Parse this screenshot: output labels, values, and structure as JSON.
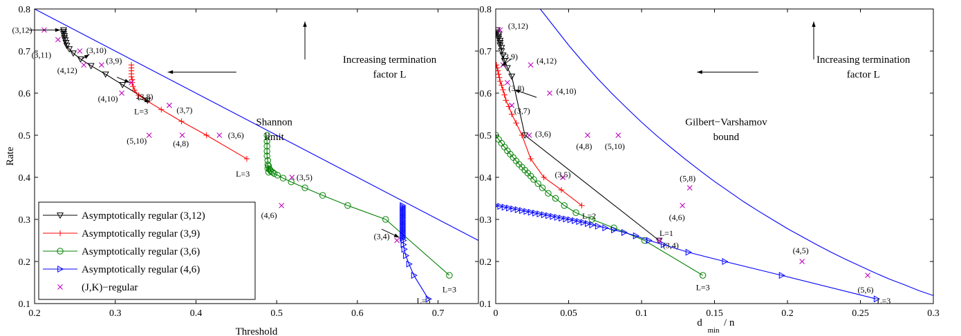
{
  "chart_data": [
    {
      "type": "line",
      "xlabel": "Threshold",
      "ylabel": "Rate",
      "xlim": [
        0.2,
        0.75
      ],
      "ylim": [
        0.1,
        0.8
      ],
      "xticks": [
        0.2,
        0.3,
        0.4,
        0.5,
        0.6,
        0.7
      ],
      "yticks": [
        0.1,
        0.2,
        0.3,
        0.4,
        0.5,
        0.6,
        0.7,
        0.8
      ],
      "grid": false,
      "legend_position": "bottom-left",
      "series": [
        {
          "name": "Asymptotically regular (3,12)",
          "color": "#000000",
          "marker": "triangle-down",
          "x": [
            0.236,
            0.236,
            0.236,
            0.237,
            0.237,
            0.238,
            0.239,
            0.24,
            0.243,
            0.248,
            0.257,
            0.27,
            0.288,
            0.309,
            0.34
          ],
          "y": [
            0.75,
            0.746,
            0.741,
            0.736,
            0.731,
            0.726,
            0.72,
            0.713,
            0.705,
            0.695,
            0.681,
            0.665,
            0.645,
            0.62,
            0.583
          ]
        },
        {
          "name": "Asymptotically regular (3,9)",
          "color": "#ff0000",
          "marker": "plus",
          "x": [
            0.32,
            0.32,
            0.32,
            0.32,
            0.32,
            0.321,
            0.321,
            0.322,
            0.324,
            0.329,
            0.34,
            0.357,
            0.382,
            0.413,
            0.463
          ],
          "y": [
            0.667,
            0.66,
            0.653,
            0.646,
            0.639,
            0.632,
            0.625,
            0.616,
            0.607,
            0.595,
            0.581,
            0.561,
            0.533,
            0.5,
            0.444
          ]
        },
        {
          "name": "Asymptotically regular (3,6)",
          "color": "#008000",
          "marker": "circle",
          "x": [
            0.488,
            0.488,
            0.488,
            0.488,
            0.488,
            0.489,
            0.489,
            0.489,
            0.49,
            0.49,
            0.491,
            0.492,
            0.493,
            0.495,
            0.497,
            0.501,
            0.508,
            0.518,
            0.535,
            0.557,
            0.588,
            0.635,
            0.714
          ],
          "y": [
            0.5,
            0.486,
            0.474,
            0.462,
            0.451,
            0.44,
            0.43,
            0.421,
            0.412,
            0.427,
            0.42,
            0.417,
            0.414,
            0.412,
            0.409,
            0.405,
            0.398,
            0.389,
            0.375,
            0.357,
            0.333,
            0.3,
            0.167
          ]
        },
        {
          "name": "Asymptotically regular (4,6)",
          "color": "#0000ff",
          "marker": "triangle-right",
          "x": [
            0.656,
            0.656,
            0.656,
            0.656,
            0.656,
            0.656,
            0.656,
            0.656,
            0.656,
            0.656,
            0.656,
            0.656,
            0.656,
            0.656,
            0.656,
            0.656,
            0.656,
            0.656,
            0.656,
            0.656,
            0.656,
            0.656,
            0.656,
            0.656,
            0.656,
            0.656,
            0.656,
            0.657,
            0.657,
            0.658,
            0.66,
            0.664,
            0.67,
            0.688
          ],
          "y": [
            0.333,
            0.33,
            0.327,
            0.324,
            0.321,
            0.318,
            0.315,
            0.312,
            0.309,
            0.306,
            0.303,
            0.3,
            0.297,
            0.294,
            0.291,
            0.288,
            0.285,
            0.282,
            0.279,
            0.276,
            0.273,
            0.27,
            0.267,
            0.264,
            0.261,
            0.258,
            0.255,
            0.25,
            0.24,
            0.229,
            0.214,
            0.194,
            0.167,
            0.111
          ]
        },
        {
          "name": "(J,K)−regular",
          "color": "#c000c0",
          "marker": "x",
          "line": false,
          "x": [
            0.212,
            0.229,
            0.256,
            0.261,
            0.283,
            0.308,
            0.32,
            0.367,
            0.429,
            0.519,
            0.506,
            0.649,
            0.342,
            0.383
          ],
          "y": [
            0.75,
            0.727,
            0.7,
            0.667,
            0.667,
            0.6,
            0.625,
            0.571,
            0.5,
            0.4,
            0.333,
            0.25,
            0.5,
            0.5
          ],
          "labels": [
            "(3,12)",
            "(3,11)",
            "(3,10)",
            "(4,12)",
            "(3,9)",
            "(4,10)",
            "(3,8)",
            "(3,7)",
            "(3,6)",
            "(3,5)",
            "(4,6)",
            "(3,4)",
            "(5,10)",
            "(4,8)"
          ]
        },
        {
          "name": "Shannon limit",
          "color": "#0000ff",
          "marker": "none",
          "x": [
            0.2,
            0.75
          ],
          "y": [
            0.8,
            0.25
          ]
        }
      ],
      "annotations": [
        {
          "text": "Increasing termination",
          "x": 0.64,
          "y": 0.68
        },
        {
          "text": "factor L",
          "x": 0.64,
          "y": 0.645
        },
        {
          "text": "Shannon",
          "x": 0.497,
          "y": 0.532
        },
        {
          "text": "limit",
          "x": 0.497,
          "y": 0.497
        },
        {
          "text": "L=3",
          "x": 0.332,
          "y": 0.558
        },
        {
          "text": "L=3",
          "x": 0.458,
          "y": 0.41
        },
        {
          "text": "L=3",
          "x": 0.714,
          "y": 0.135
        },
        {
          "text": "L=3",
          "x": 0.682,
          "y": 0.108
        }
      ],
      "legend_entries": [
        "Asymptotically regular (3,12)",
        "Asymptotically regular (3,9)",
        "Asymptotically regular (3,6)",
        "Asymptotically regular (4,6)",
        "(J,K)−regular"
      ]
    },
    {
      "type": "line",
      "xlabel_main": "d",
      "xlabel_sub": "min",
      "xlabel_tail": " / n",
      "xlim": [
        0,
        0.3
      ],
      "ylim": [
        0.1,
        0.8
      ],
      "xticks": [
        0,
        0.05,
        0.1,
        0.15,
        0.2,
        0.25,
        0.3
      ],
      "yticks": [
        0.1,
        0.2,
        0.3,
        0.4,
        0.5,
        0.6,
        0.7,
        0.8
      ],
      "grid": false,
      "series": [
        {
          "name": "Asymptotically regular (3,12)",
          "color": "#000000",
          "marker": "triangle-down",
          "x": [
            0.001,
            0.001,
            0.002,
            0.002,
            0.002,
            0.003,
            0.003,
            0.003,
            0.004,
            0.004,
            0.005,
            0.006,
            0.008,
            0.011,
            0.02,
            0.112
          ],
          "y": [
            0.75,
            0.745,
            0.74,
            0.735,
            0.73,
            0.725,
            0.72,
            0.714,
            0.708,
            0.7,
            0.69,
            0.677,
            0.66,
            0.64,
            0.5,
            0.25
          ]
        },
        {
          "name": "Asymptotically regular (3,9)",
          "color": "#ff0000",
          "marker": "plus",
          "x": [
            0.0005,
            0.001,
            0.0015,
            0.002,
            0.0025,
            0.003,
            0.004,
            0.005,
            0.006,
            0.007,
            0.009,
            0.011,
            0.014,
            0.018,
            0.024,
            0.033,
            0.045,
            0.059
          ],
          "y": [
            0.667,
            0.66,
            0.653,
            0.645,
            0.637,
            0.628,
            0.619,
            0.608,
            0.596,
            0.583,
            0.568,
            0.55,
            0.529,
            0.5,
            0.444,
            0.4,
            0.37,
            0.333
          ]
        },
        {
          "name": "Asymptotically regular (3,6)",
          "color": "#008000",
          "marker": "circle",
          "x": [
            0.0,
            0.002,
            0.004,
            0.006,
            0.008,
            0.01,
            0.012,
            0.014,
            0.016,
            0.018,
            0.02,
            0.022,
            0.024,
            0.026,
            0.029,
            0.032,
            0.036,
            0.041,
            0.047,
            0.055,
            0.066,
            0.081,
            0.102,
            0.142
          ],
          "y": [
            0.5,
            0.49,
            0.481,
            0.472,
            0.463,
            0.455,
            0.447,
            0.439,
            0.431,
            0.424,
            0.417,
            0.41,
            0.403,
            0.395,
            0.385,
            0.375,
            0.362,
            0.35,
            0.333,
            0.316,
            0.3,
            0.28,
            0.25,
            0.167
          ]
        },
        {
          "name": "Asymptotically regular (4,6)",
          "color": "#0000ff",
          "marker": "triangle-right",
          "x": [
            0.0,
            0.003,
            0.006,
            0.009,
            0.012,
            0.015,
            0.018,
            0.021,
            0.024,
            0.027,
            0.03,
            0.033,
            0.036,
            0.039,
            0.042,
            0.045,
            0.048,
            0.051,
            0.054,
            0.057,
            0.06,
            0.063,
            0.066,
            0.07,
            0.075,
            0.081,
            0.088,
            0.096,
            0.105,
            0.115,
            0.132,
            0.157,
            0.196,
            0.261
          ],
          "y": [
            0.333,
            0.331,
            0.329,
            0.327,
            0.325,
            0.323,
            0.321,
            0.319,
            0.317,
            0.315,
            0.313,
            0.311,
            0.309,
            0.307,
            0.305,
            0.303,
            0.301,
            0.299,
            0.297,
            0.295,
            0.293,
            0.29,
            0.287,
            0.284,
            0.28,
            0.275,
            0.269,
            0.261,
            0.25,
            0.24,
            0.222,
            0.2,
            0.167,
            0.111
          ]
        },
        {
          "name": "(J,K)−regular",
          "color": "#c000c0",
          "marker": "x",
          "line": false,
          "x": [
            0.003,
            0.005,
            0.008,
            0.011,
            0.023,
            0.037,
            0.046,
            0.084,
            0.063,
            0.046,
            0.112,
            0.128,
            0.133,
            0.21,
            0.255,
            0.024
          ],
          "y": [
            0.75,
            0.667,
            0.625,
            0.571,
            0.5,
            0.6,
            0.4,
            0.5,
            0.5,
            0.4,
            0.25,
            0.333,
            0.375,
            0.2,
            0.167,
            0.667
          ],
          "labels": [
            "(3,12)",
            "(3,9)",
            "(3,8)",
            "(3,7)",
            "(3,6)",
            "(4,10)",
            "(3,5)",
            "(5,10)",
            "(4,8)",
            "",
            "(3,4)",
            "(4,6)",
            "(5,8)",
            "(4,5)",
            "(5,6)",
            "(4,12)"
          ]
        },
        {
          "name": "Gilbert−Varshamov bound",
          "color": "#0000ff",
          "marker": "none",
          "x": [
            0.0305,
            0.04,
            0.05,
            0.06,
            0.07,
            0.08,
            0.09,
            0.1,
            0.11,
            0.12,
            0.13,
            0.14,
            0.15,
            0.16,
            0.17,
            0.18,
            0.19,
            0.2,
            0.21,
            0.22,
            0.23,
            0.24,
            0.25,
            0.26,
            0.27,
            0.28,
            0.29,
            0.3
          ],
          "y": [
            0.8,
            0.758,
            0.714,
            0.673,
            0.634,
            0.598,
            0.564,
            0.531,
            0.5,
            0.471,
            0.443,
            0.416,
            0.39,
            0.366,
            0.342,
            0.32,
            0.299,
            0.278,
            0.259,
            0.24,
            0.222,
            0.205,
            0.189,
            0.173,
            0.158,
            0.145,
            0.131,
            0.119
          ]
        }
      ],
      "annotations": [
        {
          "text": "Increasing termination",
          "x": 0.252,
          "y": 0.68
        },
        {
          "text": "factor L",
          "x": 0.252,
          "y": 0.645
        },
        {
          "text": "Gilbert−Varshamov",
          "x": 0.158,
          "y": 0.532
        },
        {
          "text": "bound",
          "x": 0.158,
          "y": 0.497
        },
        {
          "text": "L=2",
          "x": 0.064,
          "y": 0.31
        },
        {
          "text": "L=1",
          "x": 0.117,
          "y": 0.269
        },
        {
          "text": "L=3",
          "x": 0.142,
          "y": 0.14
        },
        {
          "text": "L=3",
          "x": 0.266,
          "y": 0.108
        }
      ]
    }
  ]
}
